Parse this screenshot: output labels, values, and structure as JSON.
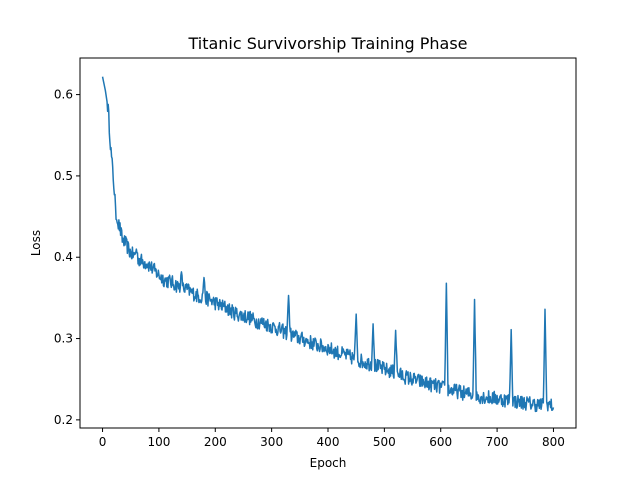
{
  "chart_data": {
    "type": "line",
    "title": "Titanic Survivorship Training Phase",
    "xlabel": "Epoch",
    "ylabel": "Loss",
    "xlim": [
      -40,
      840
    ],
    "ylim": [
      0.19,
      0.645
    ],
    "xticks": [
      0,
      100,
      200,
      300,
      400,
      500,
      600,
      700,
      800
    ],
    "yticks": [
      0.2,
      0.3,
      0.4,
      0.5,
      0.6
    ],
    "ytick_labels": [
      "0.2",
      "0.3",
      "0.4",
      "0.5",
      "0.6"
    ],
    "grid": false,
    "line_color": "#1f77b4",
    "series": [
      {
        "x": [
          0,
          5,
          10,
          15,
          20,
          25,
          30,
          35,
          40,
          50,
          60,
          70,
          80,
          90,
          100,
          110,
          120,
          130,
          140,
          150,
          160,
          170,
          180,
          190,
          200,
          210,
          220,
          230,
          240,
          250,
          260,
          270,
          280,
          290,
          300,
          310,
          320,
          330,
          340,
          350,
          360,
          370,
          380,
          390,
          400,
          410,
          420,
          430,
          440,
          450,
          460,
          470,
          480,
          490,
          500,
          510,
          520,
          530,
          540,
          550,
          560,
          570,
          580,
          590,
          600,
          610,
          620,
          630,
          640,
          650,
          660,
          670,
          680,
          690,
          700,
          710,
          720,
          730,
          740,
          750,
          760,
          770,
          780,
          785,
          790,
          795,
          800
        ],
        "y": [
          0.622,
          0.605,
          0.582,
          0.53,
          0.49,
          0.445,
          0.438,
          0.422,
          0.418,
          0.405,
          0.4,
          0.395,
          0.392,
          0.385,
          0.378,
          0.372,
          0.37,
          0.366,
          0.362,
          0.36,
          0.356,
          0.352,
          0.35,
          0.348,
          0.344,
          0.34,
          0.338,
          0.333,
          0.33,
          0.328,
          0.326,
          0.322,
          0.32,
          0.318,
          0.315,
          0.312,
          0.309,
          0.306,
          0.303,
          0.3,
          0.298,
          0.295,
          0.292,
          0.29,
          0.288,
          0.285,
          0.282,
          0.28,
          0.277,
          0.275,
          0.272,
          0.27,
          0.268,
          0.265,
          0.262,
          0.26,
          0.258,
          0.255,
          0.252,
          0.25,
          0.248,
          0.246,
          0.244,
          0.242,
          0.24,
          0.238,
          0.236,
          0.235,
          0.233,
          0.232,
          0.23,
          0.229,
          0.228,
          0.227,
          0.226,
          0.225,
          0.224,
          0.223,
          0.222,
          0.221,
          0.22,
          0.219,
          0.218,
          0.219,
          0.22,
          0.218,
          0.216
        ]
      }
    ],
    "spikes": [
      {
        "x": 25,
        "y": 0.446
      },
      {
        "x": 60,
        "y": 0.41
      },
      {
        "x": 140,
        "y": 0.382
      },
      {
        "x": 180,
        "y": 0.375
      },
      {
        "x": 330,
        "y": 0.353
      },
      {
        "x": 450,
        "y": 0.33
      },
      {
        "x": 480,
        "y": 0.318
      },
      {
        "x": 520,
        "y": 0.31
      },
      {
        "x": 610,
        "y": 0.368
      },
      {
        "x": 660,
        "y": 0.348
      },
      {
        "x": 725,
        "y": 0.311
      },
      {
        "x": 785,
        "y": 0.336
      }
    ]
  }
}
